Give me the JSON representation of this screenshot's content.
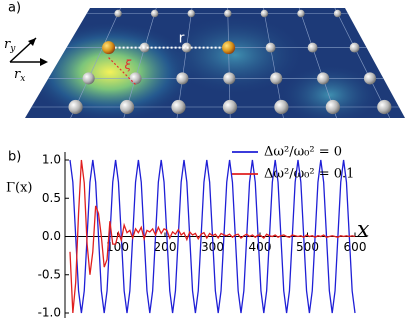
{
  "panel_a": {
    "label": "a)",
    "r": "r",
    "xi": "ξ",
    "ry": "r",
    "ry_sub": "y",
    "rx": "r",
    "rx_sub": "x"
  },
  "chart_data": {
    "type": "line",
    "panel_label": "b)",
    "x_label": "x",
    "y_label": "Γ(x)",
    "x": [
      0,
      6,
      12,
      18,
      24,
      30,
      36,
      42,
      48,
      54,
      60,
      66,
      72,
      78,
      84,
      90,
      96,
      102,
      108,
      114,
      120,
      126,
      132,
      138,
      144,
      150,
      156,
      162,
      168,
      174,
      180,
      186,
      192,
      198,
      204,
      210,
      216,
      222,
      228,
      234,
      240,
      246,
      252,
      258,
      264,
      270,
      276,
      282,
      288,
      294,
      300,
      306,
      312,
      318,
      324,
      330,
      336,
      342,
      348,
      354,
      360,
      366,
      372,
      378,
      384,
      390,
      396,
      402,
      408,
      414,
      420,
      426,
      432,
      438,
      444,
      450,
      456,
      462,
      468,
      474,
      480,
      486,
      492,
      498,
      504,
      510,
      516,
      522,
      528,
      534,
      540,
      546,
      552,
      558,
      564,
      570,
      576,
      582,
      588,
      594,
      600
    ],
    "series": [
      {
        "name": "Δω²/ω₀² = 0",
        "color": "#1f1fd6",
        "values": [
          1,
          0.71,
          0,
          -0.71,
          -1,
          -0.71,
          0,
          0.71,
          1,
          0.71,
          0,
          -0.71,
          -1,
          -0.71,
          0,
          0.71,
          1,
          0.71,
          0,
          -0.71,
          -1,
          -0.71,
          0,
          0.71,
          1,
          0.71,
          0,
          -0.71,
          -1,
          -0.71,
          0,
          0.71,
          1,
          0.71,
          0,
          -0.71,
          -1,
          -0.71,
          0,
          0.71,
          1,
          0.71,
          0,
          -0.71,
          -1,
          -0.71,
          0,
          0.71,
          1,
          0.71,
          0,
          -0.71,
          -1,
          -0.71,
          0,
          0.71,
          1,
          0.71,
          0,
          -0.71,
          -1,
          -0.71,
          0,
          0.71,
          1,
          0.71,
          0,
          -0.71,
          -1,
          -0.71,
          0,
          0.71,
          1,
          0.71,
          0,
          -0.71,
          -1,
          -0.71,
          0,
          0.71,
          1,
          0.71,
          0,
          -0.71,
          -1,
          -0.71,
          0,
          0.71,
          1,
          0.71,
          0,
          -0.71,
          -1,
          -0.71,
          0,
          0.71,
          1,
          0.71,
          0,
          -0.71,
          -1
        ]
      },
      {
        "name": "Δω²/ω₀² = 0.1",
        "color": "#e01f1f",
        "values": [
          -0.2,
          -1.0,
          -0.6,
          0.3,
          1.0,
          0.7,
          -0.1,
          -0.5,
          -0.2,
          0.4,
          0.3,
          0.0,
          -0.4,
          -0.3,
          0.2,
          -0.1,
          -0.1,
          0.05,
          -0.05,
          0.15,
          0.05,
          0.08,
          -0.02,
          0.1,
          0.05,
          0.12,
          -0.03,
          0.08,
          0.06,
          0.1,
          0.02,
          0.12,
          0.04,
          0.1,
          0.08,
          -0.02,
          0.06,
          0.03,
          0.09,
          0.02,
          0.05,
          -0.04,
          0.06,
          0.02,
          0.04,
          -0.03,
          0.03,
          0.05,
          -0.02,
          0.04,
          0.01,
          0.03,
          -0.02,
          0.04,
          0.02,
          0.01,
          0.03,
          -0.01,
          0.02,
          0.03,
          -0.02,
          0.01,
          0.03,
          0.0,
          0.02,
          -0.01,
          0.02,
          0.01,
          -0.02,
          0.03,
          0.01,
          0.0,
          0.02,
          -0.01,
          0.01,
          0.02,
          0.0,
          -0.01,
          0.02,
          0.01,
          0.0,
          0.01,
          -0.01,
          0.02,
          0.0,
          0.01,
          -0.01,
          0.01,
          0.0,
          0.02,
          -0.01,
          0.0,
          0.01,
          0.0,
          -0.01,
          0.01,
          0.0,
          0.01,
          0.0,
          0.01,
          0.0
        ]
      }
    ],
    "xlim": [
      0,
      600
    ],
    "xticks": [
      100,
      200,
      300,
      400,
      500,
      600
    ],
    "ylim": [
      -1.0,
      1.0
    ],
    "yticks": [
      {
        "value": -1.0,
        "label": "-1.0"
      },
      {
        "value": -0.5,
        "label": "-0.5"
      },
      {
        "value": 0,
        "label": "0.0"
      },
      {
        "value": 0.5,
        "label": "0.5"
      },
      {
        "value": 1.0,
        "label": "1.0"
      }
    ],
    "legend": "upper right"
  }
}
